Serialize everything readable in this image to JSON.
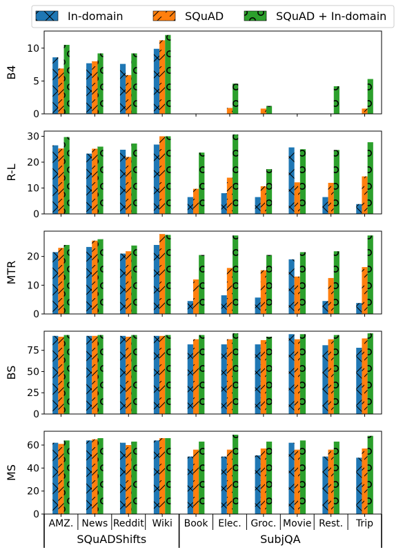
{
  "chart_data": {
    "type": "bar",
    "categories": [
      "AMZ.",
      "News",
      "Reddit",
      "Wiki",
      "Book",
      "Elec.",
      "Groc.",
      "Movie",
      "Rest.",
      "Trip"
    ],
    "groups": [
      {
        "label": "SQuADShifts",
        "from": 0,
        "to": 3
      },
      {
        "label": "SubjQA",
        "from": 4,
        "to": 9
      }
    ],
    "series_styles": [
      {
        "name": "In-domain",
        "color": "#1f77b4",
        "hatch": "x"
      },
      {
        "name": "SQuAD",
        "color": "#ff7f0e",
        "hatch": "/"
      },
      {
        "name": "SQuAD + In-domain",
        "color": "#2ca02c",
        "hatch": "o"
      }
    ],
    "legend_position": "top-center",
    "panels": [
      {
        "ylabel": "B4",
        "ylim": [
          0,
          12.6
        ],
        "yticks": [
          0,
          5,
          10
        ],
        "series": [
          {
            "name": "In-domain",
            "values": [
              8.6,
              7.7,
              7.6,
              9.9,
              0,
              0,
              0,
              0,
              0,
              0
            ]
          },
          {
            "name": "SQuAD",
            "values": [
              6.9,
              8.0,
              5.9,
              11.2,
              0,
              0.9,
              0.8,
              0,
              0,
              0.8
            ]
          },
          {
            "name": "SQuAD + In-domain",
            "values": [
              10.5,
              9.2,
              9.2,
              12.0,
              0,
              4.6,
              1.2,
              0,
              4.2,
              5.3
            ]
          }
        ]
      },
      {
        "ylabel": "R-L",
        "ylim": [
          0,
          32
        ],
        "yticks": [
          0,
          10,
          20,
          30
        ],
        "series": [
          {
            "name": "In-domain",
            "values": [
              26.5,
              23.3,
              24.8,
              26.8,
              6.5,
              8.0,
              6.5,
              25.7,
              6.5,
              3.8
            ]
          },
          {
            "name": "SQuAD",
            "values": [
              25.3,
              25.2,
              22.0,
              30.0,
              9.7,
              14.0,
              10.7,
              12.2,
              12.0,
              14.5
            ]
          },
          {
            "name": "SQuAD + In-domain",
            "values": [
              29.7,
              26.0,
              27.2,
              30.0,
              23.7,
              30.7,
              17.3,
              25.0,
              24.7,
              27.7
            ]
          }
        ]
      },
      {
        "ylabel": "MTR",
        "ylim": [
          0,
          28.8
        ],
        "yticks": [
          0,
          10,
          20
        ],
        "series": [
          {
            "name": "In-domain",
            "values": [
              21.5,
              23.3,
              21.0,
              24.0,
              4.5,
              6.5,
              5.7,
              19.0,
              4.5,
              3.8
            ]
          },
          {
            "name": "SQuAD",
            "values": [
              23.0,
              25.5,
              21.8,
              27.8,
              12.0,
              16.0,
              15.2,
              13.0,
              12.5,
              16.3
            ]
          },
          {
            "name": "SQuAD + In-domain",
            "values": [
              24.0,
              26.0,
              23.8,
              27.5,
              20.5,
              27.3,
              20.5,
              21.5,
              21.8,
              27.3
            ]
          }
        ]
      },
      {
        "ylabel": "BS",
        "ylim": [
          0,
          97.5
        ],
        "yticks": [
          0,
          25,
          50,
          75
        ],
        "series": [
          {
            "name": "In-domain",
            "values": [
              92,
              92,
              92,
              92,
              82,
              82,
              82,
              94,
              81,
              78
            ]
          },
          {
            "name": "SQuAD",
            "values": [
              91,
              92,
              91,
              92,
              88,
              88,
              87,
              88,
              88,
              89
            ]
          },
          {
            "name": "SQuAD + In-domain",
            "values": [
              93,
              93,
              93,
              93,
              93,
              95,
              91,
              94,
              93,
              95
            ]
          }
        ]
      },
      {
        "ylabel": "MS",
        "ylim": [
          0,
          72
        ],
        "yticks": [
          0,
          20,
          40,
          60
        ],
        "series": [
          {
            "name": "In-domain",
            "values": [
              62,
              64,
              62,
              64,
              50,
              50,
              51,
              62,
              50,
              49
            ]
          },
          {
            "name": "SQuAD",
            "values": [
              61,
              65,
              60,
              66,
              56,
              56,
              57,
              56,
              56,
              57
            ]
          },
          {
            "name": "SQuAD + In-domain",
            "values": [
              64,
              66,
              63,
              66,
              63,
              69,
              63,
              64,
              63,
              68
            ]
          }
        ]
      }
    ]
  }
}
